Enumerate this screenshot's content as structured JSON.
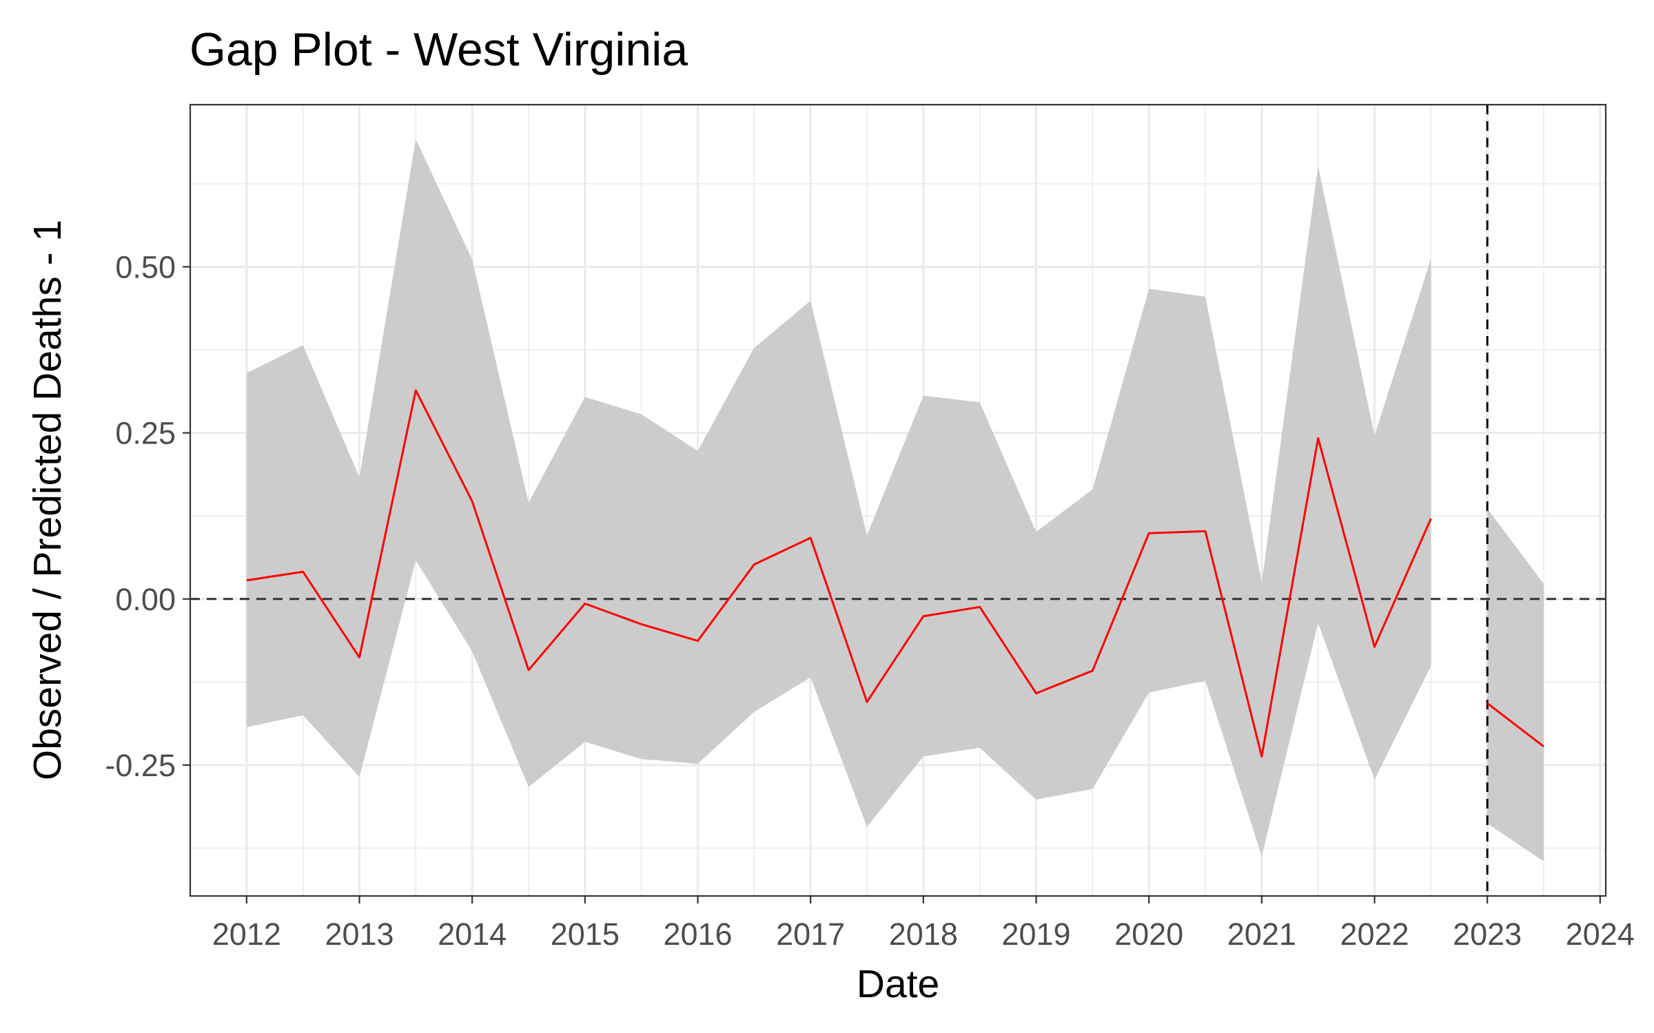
{
  "chart_data": {
    "type": "line",
    "title": "Gap Plot - West Virginia",
    "xlabel": "Date",
    "ylabel": "Observed / Predicted Deaths - 1",
    "x_ticks": [
      "2012",
      "2013",
      "2014",
      "2015",
      "2016",
      "2017",
      "2018",
      "2019",
      "2020",
      "2021",
      "2022",
      "2023",
      "2024"
    ],
    "y_ticks": [
      "-0.25",
      "0.00",
      "0.25",
      "0.50"
    ],
    "xlim": [
      2011.5,
      2024.05
    ],
    "ylim": [
      -0.447,
      0.744
    ],
    "grid": true,
    "legend": "none",
    "intervention_x": 2023.0,
    "reference_y": 0.0,
    "colors": {
      "line": "#ff0000",
      "band": "#cccccc",
      "grid": "#ebebeb",
      "reference": "#333333",
      "panel_border": "#333333"
    },
    "series": [
      {
        "segment": "pre",
        "x": [
          2012.0,
          2012.5,
          2013.0,
          2013.5,
          2014.0,
          2014.5,
          2015.0,
          2015.5,
          2016.0,
          2016.5,
          2017.0,
          2017.5,
          2018.0,
          2018.5,
          2019.0,
          2019.5,
          2020.0,
          2020.5,
          2021.0,
          2021.5,
          2022.0,
          2022.5
        ],
        "y": [
          0.028,
          0.041,
          -0.088,
          0.314,
          0.147,
          -0.107,
          -0.007,
          -0.038,
          -0.063,
          0.052,
          0.092,
          -0.155,
          -0.026,
          -0.012,
          -0.142,
          -0.108,
          0.099,
          0.102,
          -0.237,
          0.242,
          -0.072,
          0.121
        ],
        "lower": [
          -0.193,
          -0.175,
          -0.268,
          0.058,
          -0.079,
          -0.283,
          -0.215,
          -0.241,
          -0.248,
          -0.17,
          -0.118,
          -0.343,
          -0.237,
          -0.224,
          -0.302,
          -0.286,
          -0.141,
          -0.123,
          -0.387,
          -0.036,
          -0.272,
          -0.101
        ],
        "upper": [
          0.34,
          0.382,
          0.183,
          0.692,
          0.511,
          0.145,
          0.304,
          0.278,
          0.223,
          0.378,
          0.449,
          0.096,
          0.306,
          0.296,
          0.101,
          0.165,
          0.467,
          0.455,
          0.025,
          0.652,
          0.246,
          0.512
        ]
      },
      {
        "segment": "post",
        "x": [
          2023.0,
          2023.5
        ],
        "y": [
          -0.157,
          -0.222
        ],
        "lower": [
          -0.338,
          -0.395
        ],
        "upper": [
          0.136,
          0.023
        ]
      }
    ]
  }
}
